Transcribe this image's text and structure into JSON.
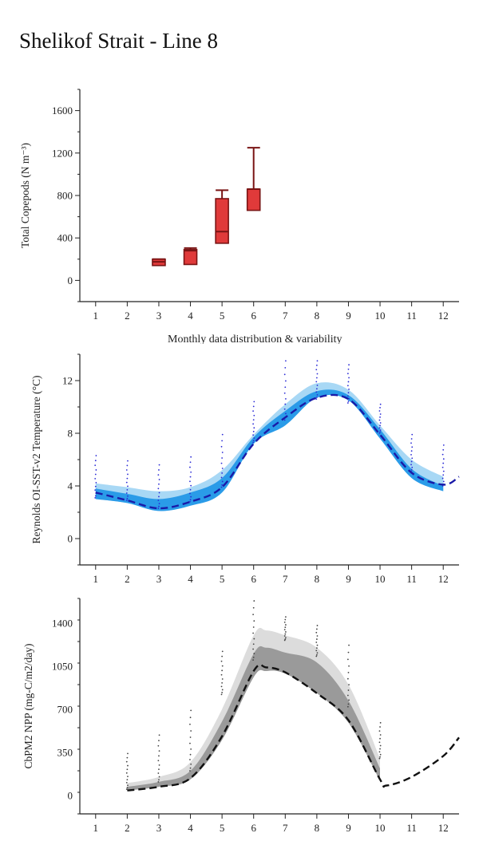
{
  "page": {
    "title": "Shelikof Strait - Line 8"
  },
  "chart_data": [
    {
      "type": "box",
      "ylabel": "Total Copepods (N m⁻³)",
      "xlabel": "Monthly data distribution & variability",
      "x_ticks": [
        "1",
        "2",
        "3",
        "4",
        "5",
        "6",
        "7",
        "8",
        "9",
        "10",
        "11",
        "12"
      ],
      "y_ticks": [
        0,
        400,
        800,
        1200,
        1600
      ],
      "xlim": [
        0.5,
        12.5
      ],
      "ylim": [
        -200,
        1800
      ],
      "colors": {
        "box_fill": "#e03a3a",
        "box_edge": "#7a1414"
      },
      "boxes": [
        {
          "month": 3,
          "whisker_low": 140,
          "q1": 140,
          "median": 175,
          "q3": 200,
          "whisker_high": 200
        },
        {
          "month": 4,
          "whisker_low": 150,
          "q1": 150,
          "median": 280,
          "q3": 290,
          "whisker_high": 305
        },
        {
          "month": 5,
          "whisker_low": 350,
          "q1": 350,
          "median": 460,
          "q3": 770,
          "whisker_high": 850
        },
        {
          "month": 6,
          "whisker_low": 660,
          "q1": 660,
          "median": 860,
          "q3": 860,
          "whisker_high": 1250
        }
      ]
    },
    {
      "type": "area",
      "ylabel": "Reynolds OI-SST-v2 Temperature (°C)",
      "x_ticks": [
        "1",
        "2",
        "3",
        "4",
        "5",
        "6",
        "7",
        "8",
        "9",
        "10",
        "11",
        "12"
      ],
      "y_ticks": [
        0,
        4,
        8,
        12
      ],
      "xlim": [
        0.5,
        12.5
      ],
      "ylim": [
        -2,
        14
      ],
      "colors": {
        "outer_band": "#a8d8f5",
        "inner_band": "#2a9be8",
        "line": "#1a1aa8",
        "points": "#2b2bd6"
      },
      "x": [
        1,
        2,
        3,
        4,
        5,
        6,
        7,
        8,
        9,
        10,
        11,
        12,
        12.5
      ],
      "outer_upper": [
        4.2,
        3.9,
        3.6,
        3.9,
        5.2,
        7.9,
        10.2,
        11.8,
        11.3,
        8.6,
        6.0,
        4.7,
        null
      ],
      "outer_lower": [
        3.0,
        2.7,
        2.1,
        2.5,
        3.5,
        7.2,
        8.6,
        10.7,
        10.5,
        7.6,
        4.6,
        3.6,
        null
      ],
      "inner_upper": [
        3.8,
        3.4,
        3.0,
        3.5,
        4.6,
        7.7,
        9.7,
        11.2,
        10.9,
        8.3,
        5.3,
        4.0,
        null
      ],
      "inner_lower": [
        3.0,
        2.7,
        2.1,
        2.5,
        3.5,
        7.2,
        8.6,
        10.7,
        10.5,
        7.6,
        4.6,
        3.6,
        null
      ],
      "mean_line": [
        3.5,
        2.9,
        2.3,
        2.8,
        3.9,
        7.2,
        9.2,
        10.7,
        10.6,
        7.9,
        5.0,
        4.1,
        4.7
      ],
      "points": [
        {
          "month": 1,
          "min": 3.1,
          "max": 6.3
        },
        {
          "month": 2,
          "min": 2.9,
          "max": 5.9
        },
        {
          "month": 3,
          "min": 2.3,
          "max": 5.6
        },
        {
          "month": 4,
          "min": 2.8,
          "max": 6.2
        },
        {
          "month": 5,
          "min": 3.9,
          "max": 7.9
        },
        {
          "month": 6,
          "min": 7.3,
          "max": 10.4
        },
        {
          "month": 7,
          "min": 9.0,
          "max": 13.5
        },
        {
          "month": 8,
          "min": 10.6,
          "max": 13.5
        },
        {
          "month": 9,
          "min": 10.3,
          "max": 13.2
        },
        {
          "month": 10,
          "min": 8.0,
          "max": 10.2
        },
        {
          "month": 11,
          "min": 5.1,
          "max": 7.9
        },
        {
          "month": 12,
          "min": 4.0,
          "max": 7.1
        }
      ]
    },
    {
      "type": "area",
      "ylabel": "CbPM2 NPP (mg-C/m2/day)",
      "x_ticks": [
        "1",
        "2",
        "3",
        "4",
        "5",
        "6",
        "7",
        "8",
        "9",
        "10",
        "11",
        "12"
      ],
      "y_ticks": [
        0,
        350,
        700,
        1050,
        1400
      ],
      "xlim": [
        0.5,
        12.5
      ],
      "ylim": [
        -150,
        1600
      ],
      "colors": {
        "outer_band": "#dcdcdc",
        "inner_band": "#9a9a9a",
        "line": "#111111",
        "points": "#444444"
      },
      "x": [
        2,
        3,
        4,
        5,
        6,
        6.4,
        7,
        8,
        9,
        10,
        10.2,
        11,
        12,
        12.5
      ],
      "outer_upper": [
        100,
        150,
        270,
        700,
        1300,
        1340,
        1300,
        1200,
        900,
        300,
        null,
        null,
        null,
        null
      ],
      "outer_lower": [
        40,
        70,
        130,
        450,
        960,
        1010,
        990,
        830,
        590,
        120,
        null,
        null,
        null,
        null
      ],
      "inner_upper": [
        70,
        110,
        200,
        600,
        1150,
        1200,
        1160,
        1080,
        770,
        220,
        null,
        null,
        null,
        null
      ],
      "inner_lower": [
        40,
        70,
        130,
        450,
        960,
        1010,
        990,
        830,
        590,
        120,
        null,
        null,
        null,
        null
      ],
      "mean_line": [
        40,
        70,
        140,
        480,
        1010,
        1040,
        1000,
        830,
        610,
        130,
        80,
        150,
        320,
        470
      ],
      "points": [
        {
          "month": 2,
          "min": 50,
          "max": 340
        },
        {
          "month": 3,
          "min": 110,
          "max": 490
        },
        {
          "month": 4,
          "min": 200,
          "max": 690
        },
        {
          "month": 5,
          "min": 820,
          "max": 1170
        },
        {
          "month": 6,
          "min": 1100,
          "max": 1580
        },
        {
          "month": 7,
          "min": 1260,
          "max": 1450
        },
        {
          "month": 8,
          "min": 1130,
          "max": 1380
        },
        {
          "month": 9,
          "min": 720,
          "max": 1220
        },
        {
          "month": 10,
          "min": 300,
          "max": 590
        }
      ]
    }
  ]
}
